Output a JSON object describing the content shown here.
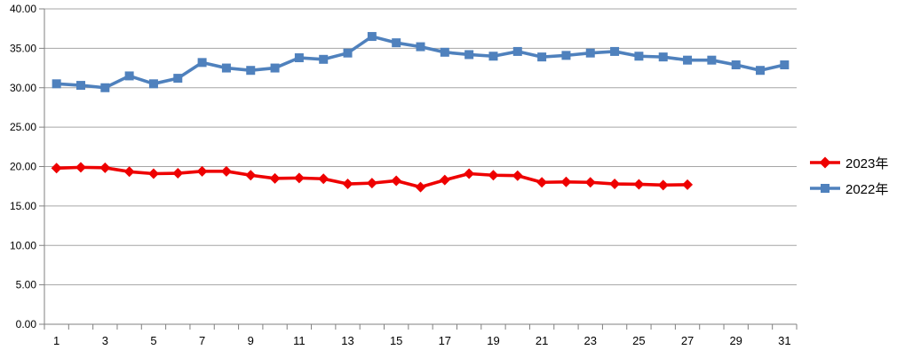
{
  "chart_data": {
    "type": "line",
    "title": "",
    "xlabel": "",
    "ylabel": "",
    "x": [
      1,
      2,
      3,
      4,
      5,
      6,
      7,
      8,
      9,
      10,
      11,
      12,
      13,
      14,
      15,
      16,
      17,
      18,
      19,
      20,
      21,
      22,
      23,
      24,
      25,
      26,
      27,
      28,
      29,
      30,
      31
    ],
    "x_ticks": {
      "positions": [
        1,
        3,
        5,
        7,
        9,
        11,
        13,
        15,
        17,
        19,
        21,
        23,
        25,
        27,
        29,
        31
      ],
      "labels": [
        "1",
        "3",
        "5",
        "7",
        "9",
        "11",
        "13",
        "15",
        "17",
        "19",
        "21",
        "23",
        "25",
        "27",
        "29",
        "31"
      ]
    },
    "y_ticks": {
      "values": [
        40,
        35,
        30,
        25,
        20,
        15,
        10,
        5,
        0
      ],
      "labels": [
        "40.00",
        "35.00",
        "30.00",
        "25.00",
        "20.00",
        "15.00",
        "10.00",
        "5.00",
        "0.00"
      ]
    },
    "ylim": [
      0,
      40
    ],
    "grid": "horizontal",
    "legend_position": "right",
    "series": [
      {
        "name": "2023年",
        "color": "#EE0000",
        "marker": "diamond",
        "values": [
          19.8,
          19.9,
          19.85,
          19.35,
          19.1,
          19.15,
          19.4,
          19.4,
          18.9,
          18.5,
          18.55,
          18.45,
          17.8,
          17.9,
          18.2,
          17.4,
          18.3,
          19.1,
          18.9,
          18.85,
          18.0,
          18.05,
          18.0,
          17.8,
          17.75,
          17.65,
          17.7
        ]
      },
      {
        "name": "2022年",
        "color": "#4F81BD",
        "marker": "square",
        "values": [
          30.5,
          30.3,
          30.0,
          31.5,
          30.5,
          31.2,
          33.2,
          32.5,
          32.2,
          32.5,
          33.8,
          33.6,
          34.4,
          36.5,
          35.7,
          35.2,
          34.5,
          34.2,
          34.0,
          34.6,
          33.9,
          34.1,
          34.4,
          34.6,
          34.0,
          33.9,
          33.5,
          33.5,
          32.9,
          32.2,
          32.9
        ]
      }
    ],
    "colors": {
      "grid": "#A6A6A6",
      "axis": "#808080",
      "text": "#000000",
      "background": "#FFFFFF"
    }
  }
}
